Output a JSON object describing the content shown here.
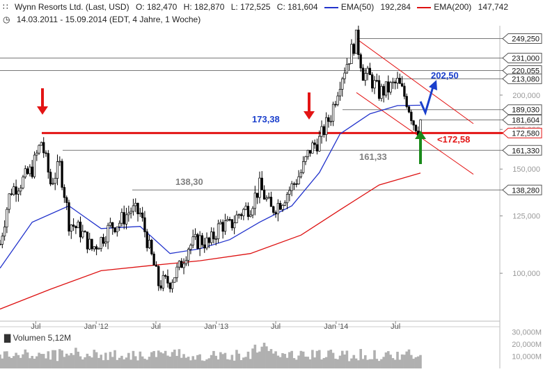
{
  "header": {
    "title": "Wynn Resorts Ltd. (Last, USD)",
    "open": "O: 182,470",
    "high": "H: 182,870",
    "low": "L: 172,525",
    "close": "C: 181,604",
    "ema50_label": "EMA(50)",
    "ema50_value": "192,284",
    "ema200_label": "EMA(200)",
    "ema200_value": "147,742",
    "range": "14.03.2011 - 15.09.2014 (EDT, 4 Jahre, 1 Woche)"
  },
  "volume": {
    "label": "Volumen",
    "value": "5,12M",
    "ticks": [
      "30,000M",
      "20,000M",
      "10,000M"
    ]
  },
  "colors": {
    "price": "#000000",
    "ema50": "#2233cc",
    "ema200": "#dd1111",
    "annotation_red": "#e31414",
    "annotation_blue": "#1a3fcc",
    "annotation_green": "#1a8a1a",
    "annotation_gray": "#808080",
    "volume_bars": "#b0b0b0"
  },
  "chart_data": {
    "type": "candlestick",
    "scale": "log",
    "ylim": [
      83,
      262
    ],
    "x_range": [
      "2011-03-14",
      "2014-09-15"
    ],
    "x_ticks": [
      "Jul",
      "Jan '12",
      "Jul",
      "Jan '13",
      "Jul",
      "Jan '14",
      "Jul"
    ],
    "y_ticks": [
      "100,000",
      "125,000",
      "150,000",
      "175,000",
      "200,000"
    ],
    "price_levels": [
      {
        "label": "249,250",
        "value": 249.25
      },
      {
        "label": "231,000",
        "value": 231.0
      },
      {
        "label": "220,055",
        "value": 220.055
      },
      {
        "label": "213,080",
        "value": 213.08
      },
      {
        "label": "189,030",
        "value": 189.03
      },
      {
        "label": "181,604",
        "value": 181.604
      },
      {
        "label": "172,580",
        "value": 172.58
      },
      {
        "label": "161,330",
        "value": 161.33
      },
      {
        "label": "138,280",
        "value": 138.28
      }
    ],
    "annotations": [
      "173,38",
      "138,30",
      "161,33",
      "202,50",
      "<172,58"
    ],
    "series": [
      {
        "name": "EMA(50)"
      },
      {
        "name": "EMA(200)"
      }
    ],
    "price_path": [
      [
        "2011-03-14",
        112
      ],
      [
        "2011-04-15",
        138
      ],
      [
        "2011-05-20",
        143
      ],
      [
        "2011-06-20",
        150
      ],
      [
        "2011-07-18",
        167
      ],
      [
        "2011-08-15",
        142
      ],
      [
        "2011-09-12",
        152
      ],
      [
        "2011-10-10",
        122
      ],
      [
        "2011-11-14",
        118
      ],
      [
        "2011-12-19",
        110
      ],
      [
        "2012-01-16",
        114
      ],
      [
        "2012-02-13",
        120
      ],
      [
        "2012-03-12",
        122
      ],
      [
        "2012-04-16",
        128
      ],
      [
        "2012-05-14",
        126
      ],
      [
        "2012-06-11",
        110
      ],
      [
        "2012-07-09",
        96
      ],
      [
        "2012-08-13",
        97
      ],
      [
        "2012-09-10",
        102
      ],
      [
        "2012-10-08",
        111
      ],
      [
        "2012-11-12",
        114
      ],
      [
        "2012-12-10",
        112
      ],
      [
        "2013-01-14",
        121
      ],
      [
        "2013-02-11",
        120
      ],
      [
        "2013-03-11",
        126
      ],
      [
        "2013-04-15",
        130
      ],
      [
        "2013-05-13",
        140
      ],
      [
        "2013-06-17",
        128
      ],
      [
        "2013-07-15",
        132
      ],
      [
        "2013-08-19",
        140
      ],
      [
        "2013-09-16",
        148
      ],
      [
        "2013-10-14",
        162
      ],
      [
        "2013-11-11",
        168
      ],
      [
        "2013-12-16",
        185
      ],
      [
        "2014-01-13",
        212
      ],
      [
        "2014-02-10",
        232
      ],
      [
        "2014-03-03",
        249
      ],
      [
        "2014-03-24",
        218
      ],
      [
        "2014-04-14",
        214
      ],
      [
        "2014-05-12",
        202
      ],
      [
        "2014-06-09",
        205
      ],
      [
        "2014-07-07",
        210
      ],
      [
        "2014-08-04",
        196
      ],
      [
        "2014-08-25",
        180
      ],
      [
        "2014-09-08",
        176
      ],
      [
        "2014-09-15",
        181.6
      ]
    ],
    "ema50_path": [
      [
        "2011-03-14",
        102
      ],
      [
        "2011-06-20",
        122
      ],
      [
        "2011-10-10",
        130
      ],
      [
        "2012-01-16",
        119
      ],
      [
        "2012-05-14",
        120
      ],
      [
        "2012-08-13",
        108
      ],
      [
        "2012-11-12",
        110
      ],
      [
        "2013-02-11",
        114
      ],
      [
        "2013-05-13",
        122
      ],
      [
        "2013-08-19",
        130
      ],
      [
        "2013-11-11",
        148
      ],
      [
        "2014-01-13",
        172
      ],
      [
        "2014-04-14",
        186
      ],
      [
        "2014-07-07",
        192
      ],
      [
        "2014-09-15",
        192.3
      ]
    ],
    "ema200_path": [
      [
        "2011-03-14",
        87
      ],
      [
        "2011-08-15",
        94
      ],
      [
        "2012-01-16",
        101
      ],
      [
        "2012-06-11",
        103
      ],
      [
        "2012-11-12",
        105
      ],
      [
        "2013-04-15",
        108
      ],
      [
        "2013-09-16",
        116
      ],
      [
        "2014-01-13",
        128
      ],
      [
        "2014-05-12",
        141
      ],
      [
        "2014-09-15",
        147.7
      ]
    ]
  }
}
